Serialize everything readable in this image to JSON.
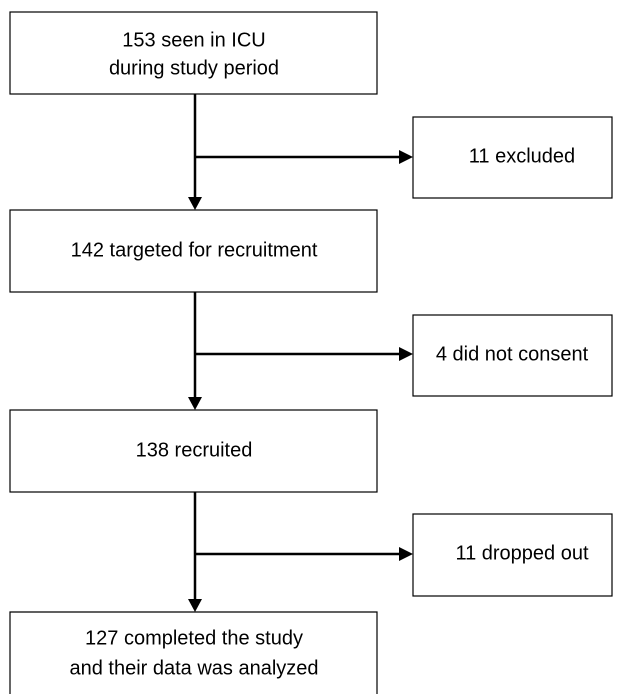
{
  "nodes": [
    {
      "lines": [
        "153 seen in ICU",
        "during study period"
      ]
    },
    {
      "lines": [
        "11 excluded"
      ]
    },
    {
      "lines": [
        "142 targeted for recruitment"
      ]
    },
    {
      "lines": [
        "4 did not consent"
      ]
    },
    {
      "lines": [
        "138 recruited"
      ]
    },
    {
      "lines": [
        "11 dropped out"
      ]
    },
    {
      "lines": [
        "127 completed the study",
        "and their data was analyzed"
      ]
    }
  ]
}
